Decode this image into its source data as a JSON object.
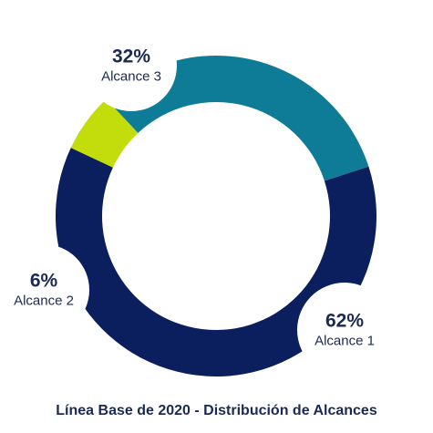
{
  "chart_data": {
    "type": "pie",
    "title": "Línea Base de 2020 - Distribución de Alcances",
    "series": [
      {
        "name": "Alcance 1",
        "value": 62,
        "label": "62%",
        "color": "#0b1f5e"
      },
      {
        "name": "Alcance 2",
        "value": 6,
        "label": "6%",
        "color": "#c2dc0c"
      },
      {
        "name": "Alcance 3",
        "value": 32,
        "label": "32%",
        "color": "#0e7c96"
      }
    ],
    "legend": "none"
  }
}
